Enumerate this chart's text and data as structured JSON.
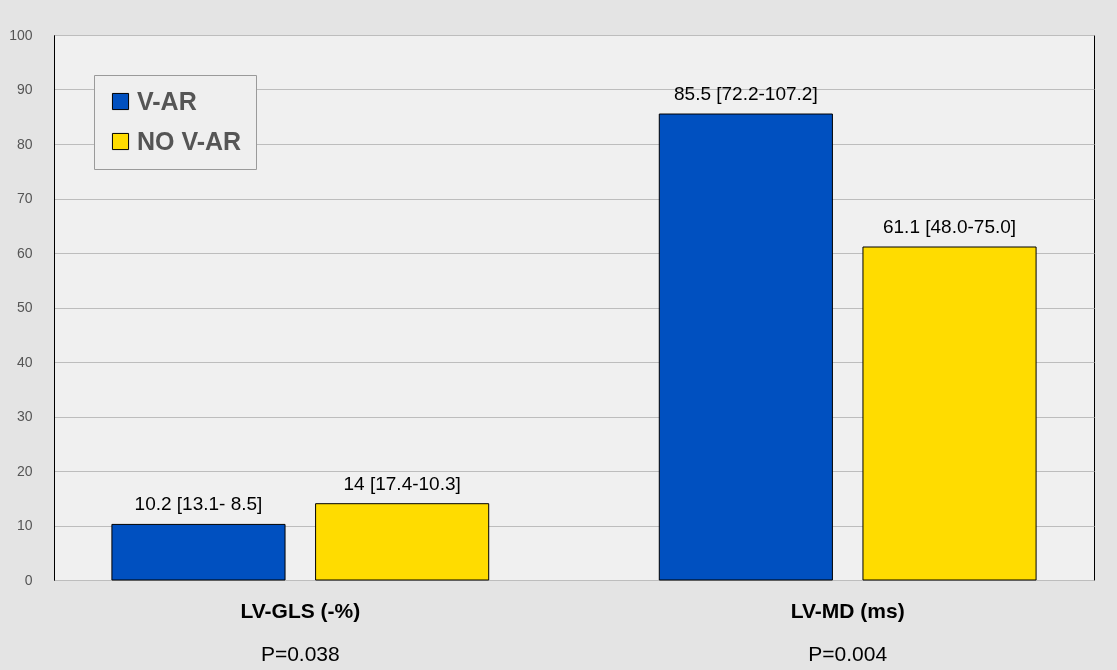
{
  "chart_data": {
    "type": "bar",
    "categories": [
      "LV-GLS (-%)",
      "LV-MD (ms)"
    ],
    "series": [
      {
        "name": "V-AR",
        "color": "#0050c0",
        "values": [
          10.2,
          85.5
        ],
        "value_labels": [
          "10.2 [13.1- 8.5]",
          "85.5 [72.2-107.2]"
        ]
      },
      {
        "name": "NO V-AR",
        "color": "#ffdc00",
        "values": [
          14,
          61.1
        ],
        "value_labels": [
          "14 [17.4-10.3]",
          "61.1 [48.0-75.0]"
        ]
      }
    ],
    "ylim": [
      0,
      100
    ],
    "yticks": [
      0,
      10,
      20,
      30,
      40,
      50,
      60,
      70,
      80,
      90,
      100
    ],
    "grid": "y",
    "legend": "top left",
    "annotations": [
      "P=0.038",
      "P=0.004"
    ]
  }
}
